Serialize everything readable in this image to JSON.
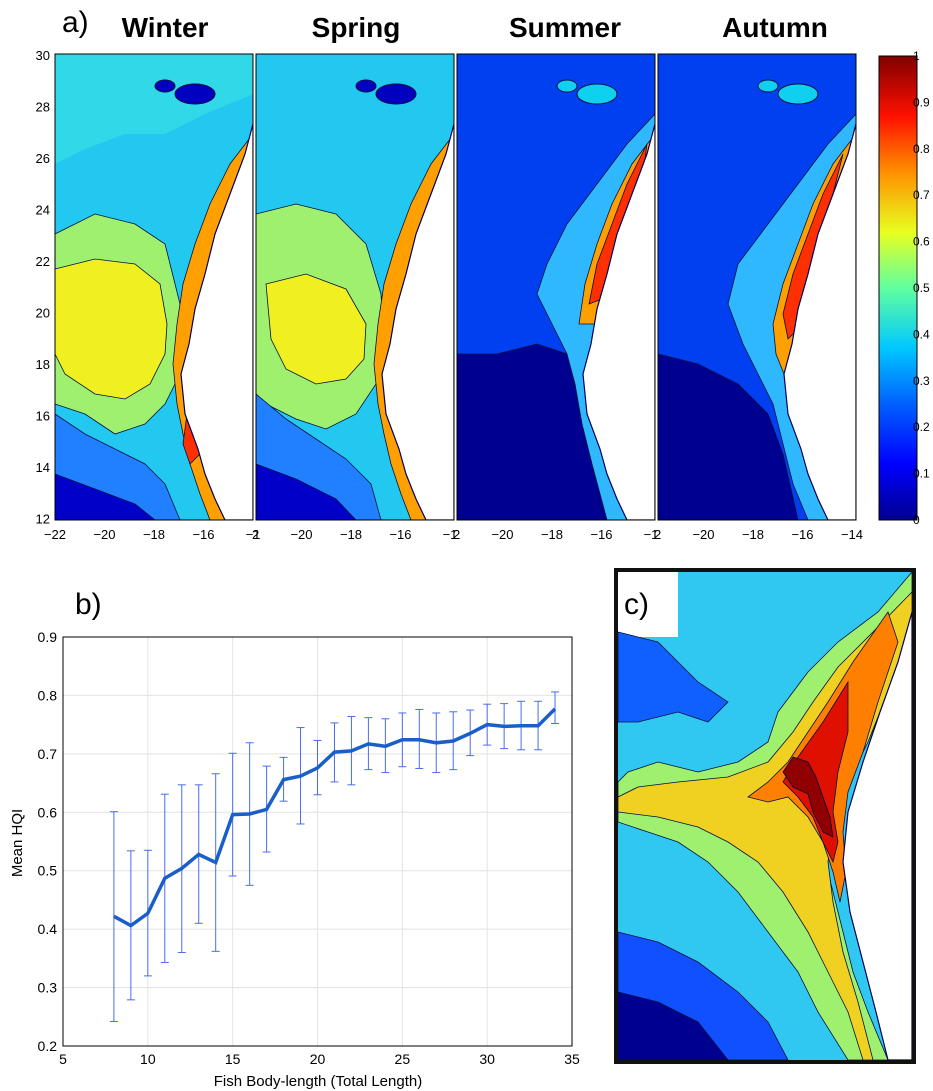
{
  "figure": {
    "panel_a": {
      "label": "a)",
      "seasons": [
        "Winter",
        "Spring",
        "Summer",
        "Autumn"
      ],
      "y_ticks": [
        "30",
        "28",
        "26",
        "24",
        "22",
        "20",
        "18",
        "16",
        "14",
        "12"
      ],
      "x_ticks_panel1": [
        "−22",
        "−20",
        "−18",
        "−16",
        "−1"
      ],
      "x_ticks_panel2": [
        "2",
        "−20",
        "−18",
        "−16",
        "−1"
      ],
      "x_ticks_panel3": [
        "2",
        "−20",
        "−18",
        "−16",
        "−1"
      ],
      "x_ticks_panel4": [
        "2",
        "−20",
        "−18",
        "−16",
        "−14"
      ],
      "colorbar_ticks": [
        "1",
        "0.9",
        "0.8",
        "0.7",
        "0.6",
        "0.5",
        "0.4",
        "0.3",
        "0.2",
        "0.1",
        "0"
      ],
      "colormap": [
        "#00008f",
        "#0000ff",
        "#0050ff",
        "#00a0ff",
        "#10e0f0",
        "#60ffa0",
        "#b0ff50",
        "#f0f020",
        "#ffb000",
        "#ff6000",
        "#ff1000",
        "#c00000",
        "#800000"
      ]
    },
    "panel_b": {
      "label": "b)",
      "xlabel": "Fish Body-length (Total Length)",
      "ylabel": "Mean HQI",
      "x_ticks": [
        "5",
        "10",
        "15",
        "20",
        "25",
        "30",
        "35"
      ],
      "y_ticks": [
        "0.9",
        "0.8",
        "0.7",
        "0.6",
        "0.5",
        "0.4",
        "0.3",
        "0.2"
      ],
      "line_color": "#1a5fc8",
      "errorbar_color": "#4a6cf0"
    },
    "panel_c": {
      "label": "c)"
    }
  },
  "chart_data": [
    {
      "type": "heatmap",
      "description_of_layout": "four seasonal map panels",
      "titles": [
        "Winter",
        "Spring",
        "Summer",
        "Autumn"
      ],
      "xlim": [
        -22,
        -14
      ],
      "ylim": [
        11,
        30
      ],
      "colorbar_range": [
        0,
        1
      ],
      "colorbar_ticks": [
        0,
        0.1,
        0.2,
        0.3,
        0.4,
        0.5,
        0.6,
        0.7,
        0.8,
        0.9,
        1
      ]
    },
    {
      "type": "line",
      "xlabel": "Fish Body-length (Total Length)",
      "ylabel": "Mean HQI",
      "xlim": [
        5,
        35
      ],
      "ylim": [
        0.2,
        0.9
      ],
      "grid": true,
      "x": [
        8,
        9,
        10,
        11,
        12,
        13,
        14,
        15,
        16,
        17,
        18,
        19,
        20,
        21,
        22,
        23,
        24,
        25,
        26,
        27,
        28,
        29,
        30,
        31,
        32,
        33,
        34
      ],
      "series": [
        {
          "values": [
            0.422,
            0.406,
            0.427,
            0.487,
            0.504,
            0.528,
            0.514,
            0.596,
            0.597,
            0.605,
            0.656,
            0.662,
            0.676,
            0.703,
            0.705,
            0.717,
            0.713,
            0.724,
            0.724,
            0.719,
            0.722,
            0.735,
            0.75,
            0.747,
            0.748,
            0.748,
            0.777
          ],
          "upper": [
            0.601,
            0.534,
            0.535,
            0.631,
            0.647,
            0.647,
            0.666,
            0.701,
            0.719,
            0.679,
            0.694,
            0.745,
            0.723,
            0.753,
            0.764,
            0.762,
            0.76,
            0.77,
            0.776,
            0.77,
            0.772,
            0.775,
            0.785,
            0.786,
            0.79,
            0.79,
            0.806
          ],
          "lower": [
            0.242,
            0.279,
            0.32,
            0.343,
            0.36,
            0.41,
            0.362,
            0.491,
            0.475,
            0.532,
            0.619,
            0.58,
            0.63,
            0.652,
            0.647,
            0.673,
            0.668,
            0.678,
            0.675,
            0.668,
            0.673,
            0.697,
            0.715,
            0.709,
            0.707,
            0.707,
            0.752
          ]
        }
      ]
    },
    {
      "type": "heatmap",
      "description_of_layout": "zoomed coastal map"
    }
  ]
}
